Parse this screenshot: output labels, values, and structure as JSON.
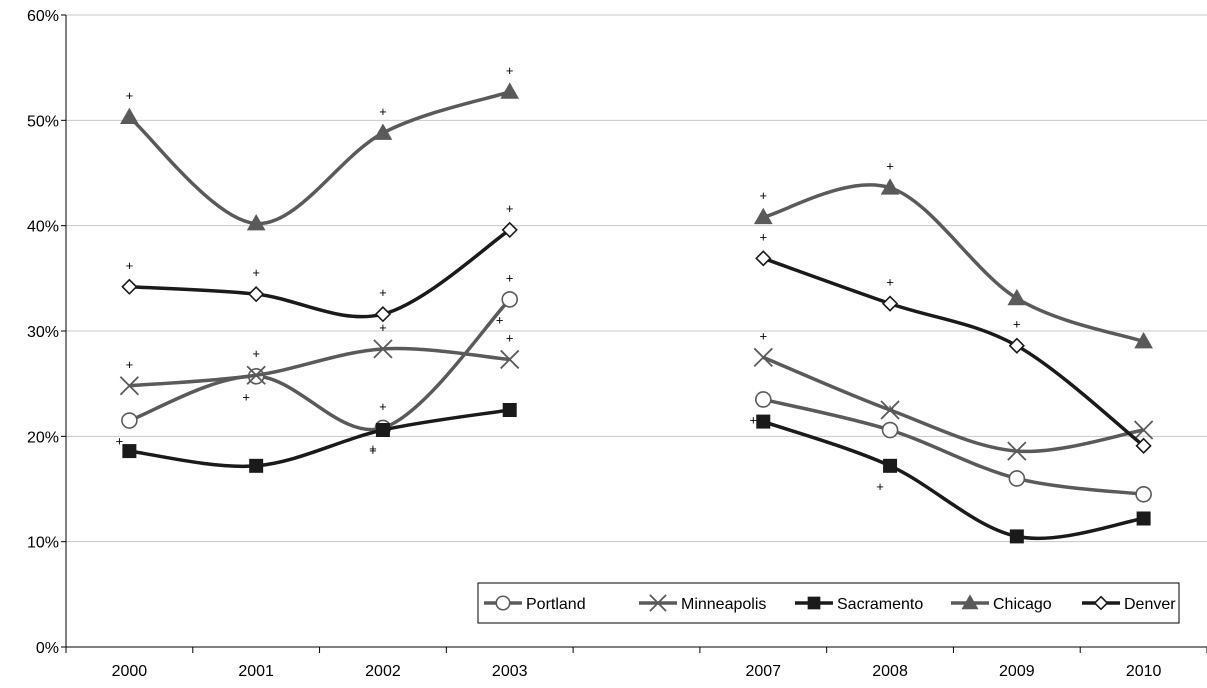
{
  "chart_data": {
    "type": "line",
    "title": "",
    "xlabel": "",
    "ylabel": "",
    "categories": [
      "2000",
      "2001",
      "2002",
      "2003",
      "",
      "2007",
      "2008",
      "2009",
      "2010"
    ],
    "ylim": [
      0,
      60
    ],
    "yticks": [
      "0%",
      "10%",
      "20%",
      "30%",
      "40%",
      "50%",
      "60%"
    ],
    "grid": true,
    "legend_position": "bottom-right",
    "series": [
      {
        "name": "Portland",
        "color": "#5a5a5a",
        "marker": "circle-open",
        "values": [
          21.5,
          25.7,
          20.8,
          33.0,
          null,
          23.5,
          20.6,
          16.0,
          14.5
        ],
        "sig_above": [
          false,
          false,
          true,
          true,
          false,
          false,
          true,
          false,
          false
        ],
        "sig_below": [
          true,
          true,
          true,
          true,
          false,
          true,
          false,
          false,
          false
        ]
      },
      {
        "name": "Minneapolis",
        "color": "#5a5a5a",
        "marker": "x",
        "values": [
          24.8,
          25.8,
          28.3,
          27.3,
          null,
          27.5,
          22.5,
          18.6,
          20.6
        ],
        "sig_above": [
          true,
          true,
          true,
          true,
          false,
          true,
          false,
          false,
          false
        ],
        "sig_below": [
          false,
          false,
          false,
          false,
          false,
          false,
          false,
          false,
          false
        ]
      },
      {
        "name": "Sacramento",
        "color": "#1a1a1a",
        "marker": "square-filled",
        "values": [
          18.6,
          17.2,
          20.6,
          22.5,
          null,
          21.4,
          17.2,
          10.5,
          12.2
        ],
        "sig_above": [
          false,
          false,
          false,
          false,
          false,
          false,
          false,
          false,
          false
        ],
        "sig_below": [
          false,
          false,
          true,
          false,
          false,
          false,
          true,
          false,
          false
        ]
      },
      {
        "name": "Chicago",
        "color": "#5a5a5a",
        "marker": "triangle-filled",
        "values": [
          50.3,
          40.2,
          48.8,
          52.7,
          null,
          40.8,
          43.6,
          33.1,
          29.0
        ],
        "sig_above": [
          true,
          false,
          true,
          true,
          false,
          true,
          true,
          false,
          false
        ],
        "sig_below": [
          false,
          false,
          false,
          false,
          false,
          false,
          false,
          false,
          false
        ]
      },
      {
        "name": "Denver",
        "color": "#1a1a1a",
        "marker": "diamond-open",
        "values": [
          34.2,
          33.5,
          31.6,
          39.6,
          null,
          36.9,
          32.6,
          28.6,
          19.1
        ],
        "sig_above": [
          true,
          true,
          true,
          true,
          false,
          true,
          true,
          true,
          false
        ],
        "sig_below": [
          false,
          false,
          false,
          false,
          false,
          false,
          false,
          false,
          false
        ]
      }
    ],
    "sig_marker": "+"
  }
}
